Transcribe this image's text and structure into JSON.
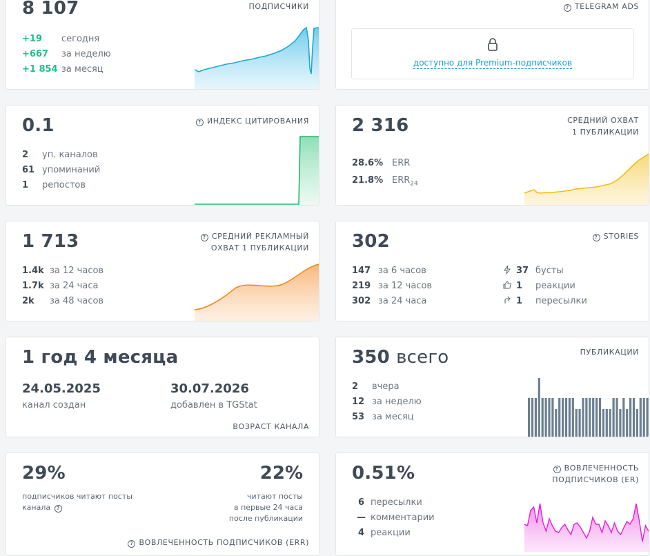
{
  "subscribers": {
    "value": "8 107",
    "title": "ПОДПИСЧИКИ",
    "rows": [
      {
        "v": "+19",
        "l": "сегодня"
      },
      {
        "v": "+667",
        "l": "за неделю"
      },
      {
        "v": "+1 854",
        "l": "за месяц"
      }
    ]
  },
  "ads": {
    "title": "TELEGRAM ADS",
    "premium_text": "доступно для Premium-подписчиков"
  },
  "citation": {
    "value": "0.1",
    "title": "ИНДЕКС ЦИТИРОВАНИЯ",
    "rows": [
      {
        "v": "2",
        "l": "уп. каналов"
      },
      {
        "v": "61",
        "l": "упоминаний"
      },
      {
        "v": "1",
        "l": "репостов"
      }
    ]
  },
  "reach": {
    "value": "2 316",
    "title1": "СРЕДНИЙ ОХВАТ",
    "title2": "1 ПУБЛИКАЦИИ",
    "err": "28.6%",
    "err_label": "ERR",
    "err24": "21.8%",
    "err24_label": "ERR",
    "err24_sub": "24"
  },
  "ad_reach": {
    "value": "1 713",
    "title1": "СРЕДНИЙ РЕКЛАМНЫЙ",
    "title2": "ОХВАТ 1 ПУБЛИКАЦИИ",
    "rows": [
      {
        "v": "1.4k",
        "l": "за 12 часов"
      },
      {
        "v": "1.7k",
        "l": "за 24 часа"
      },
      {
        "v": "2k",
        "l": "за 48 часов"
      }
    ]
  },
  "stories": {
    "value": "302",
    "title": "STORIES",
    "rows": [
      {
        "v": "147",
        "l": "за 6 часов"
      },
      {
        "v": "219",
        "l": "за 12 часов"
      },
      {
        "v": "302",
        "l": "за 24 часа"
      }
    ],
    "stats": [
      {
        "icon": "bolt-icon",
        "v": "37",
        "l": "бусты"
      },
      {
        "icon": "thumbs-up-icon",
        "v": "1",
        "l": "реакции"
      },
      {
        "icon": "share-icon",
        "v": "1",
        "l": "пересылки"
      }
    ]
  },
  "age": {
    "value": "1 год 4 месяца",
    "created_date": "24.05.2025",
    "created_label": "канал создан",
    "added_date": "30.07.2026",
    "added_label": "добавлен в TGStat",
    "title": "ВОЗРАСТ КАНАЛА"
  },
  "posts": {
    "value": "350",
    "value_suffix": "всего",
    "title": "ПУБЛИКАЦИИ",
    "rows": [
      {
        "v": "2",
        "l": "вчера"
      },
      {
        "v": "12",
        "l": "за неделю"
      },
      {
        "v": "53",
        "l": "за месяц"
      }
    ]
  },
  "err": {
    "left_value": "29%",
    "left_text1": "подписчиков читают посты",
    "left_text2": "канала",
    "right_value": "22%",
    "right_text1": "читают посты",
    "right_text2": "в первые 24 часа",
    "right_text3": "после публикации",
    "title": "ВОВЛЕЧЕННОСТЬ ПОДПИСЧИКОВ (ERR)"
  },
  "er": {
    "value": "0.51%",
    "title1": "ВОВЛЕЧЕННОСТЬ",
    "title2": "ПОДПИСЧИКОВ (ER)",
    "rows": [
      {
        "v": "6",
        "l": "пересылки"
      },
      {
        "v": "—",
        "l": "комментарии"
      },
      {
        "v": "4",
        "l": "реакции"
      }
    ]
  },
  "colors": {
    "green_delta": "#1fbf8a",
    "subscribers_line": "#1fa6d4",
    "citation_line": "#22b86b",
    "reach_line": "#f2bc18",
    "ad_reach_line": "#f08a20",
    "posts_bars": "#6b7f90",
    "er_line": "#e020d8"
  }
}
